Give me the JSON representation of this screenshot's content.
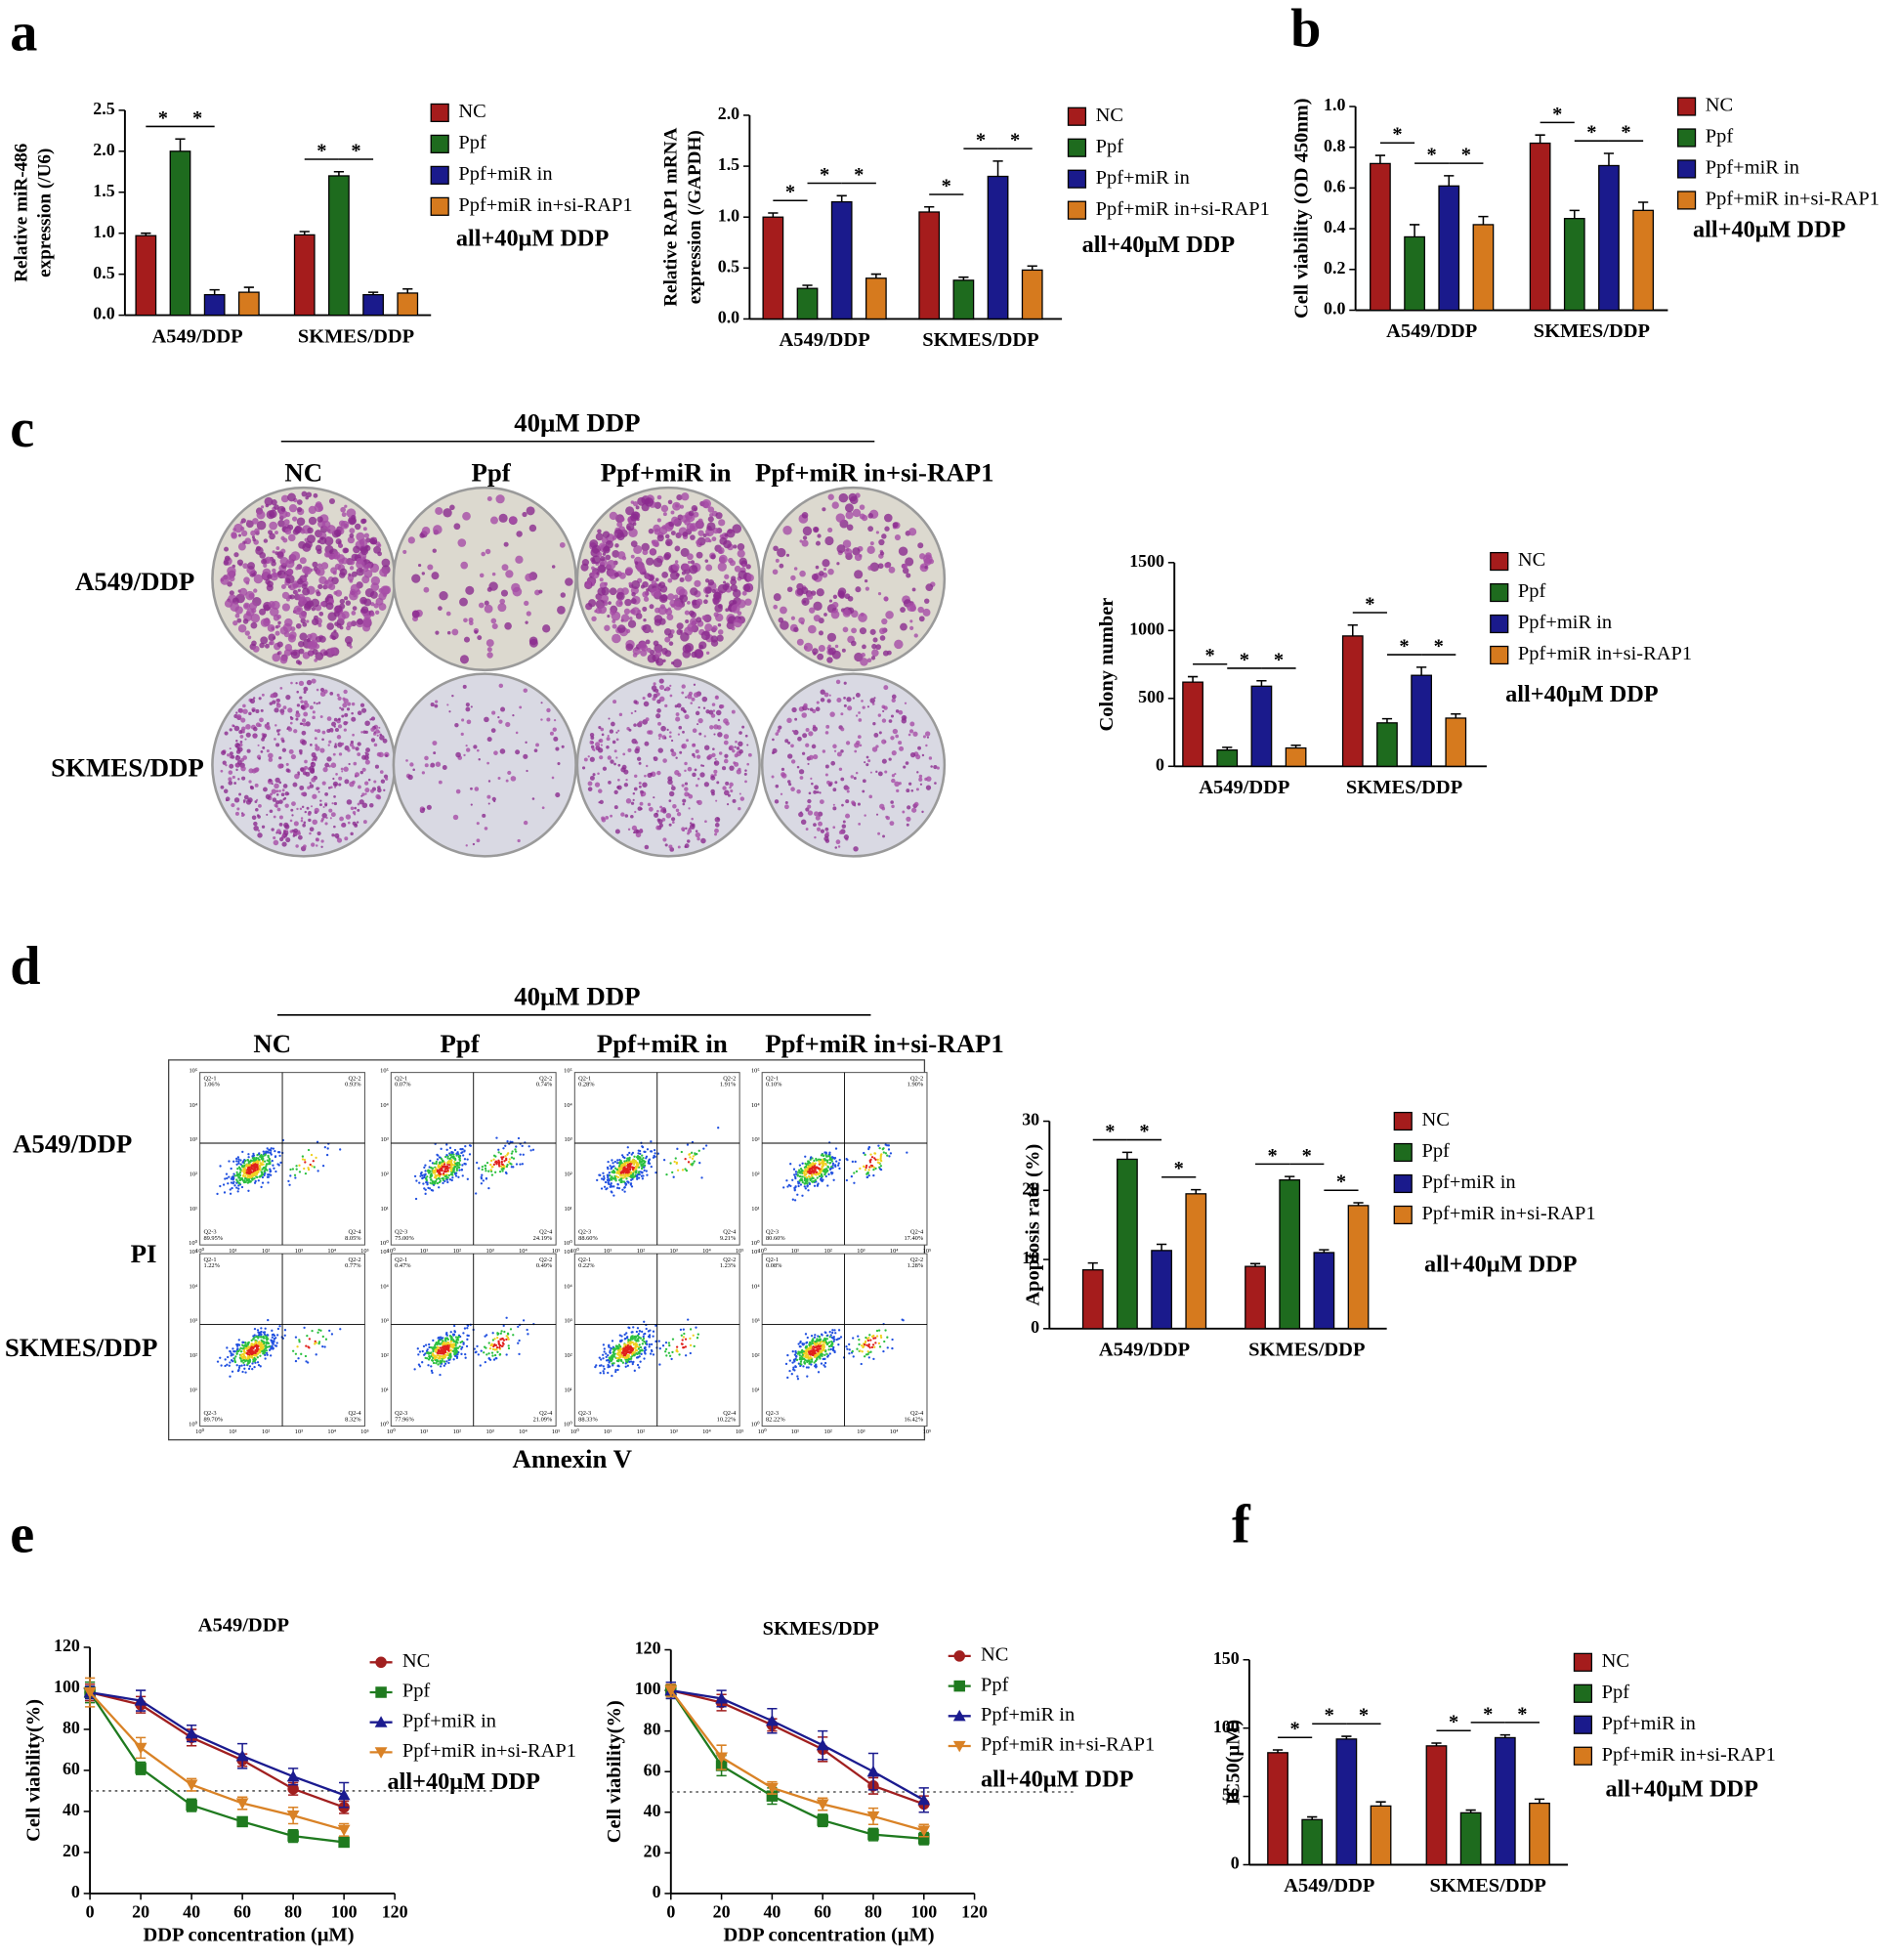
{
  "figure": {
    "panel_letters": [
      "a",
      "b",
      "c",
      "d",
      "e",
      "f"
    ],
    "panel_c": {
      "treatment": "40μM DDP",
      "columns": [
        "NC",
        "Ppf",
        "Ppf+miR in",
        "Ppf+miR in+si-RAP1"
      ],
      "rows": [
        "A549/DDP",
        "SKMES/DDP"
      ]
    },
    "panel_d": {
      "treatment": "40μM DDP",
      "columns": [
        "NC",
        "Ppf",
        "Ppf+miR in",
        "Ppf+miR in+si-RAP1"
      ],
      "rows": [
        "A549/DDP",
        "SKMES/DDP"
      ],
      "y_axis": "PI",
      "x_axis": "Annexin V",
      "quadrants": [
        "Q2-1",
        "Q2-2",
        "Q2-3",
        "Q2-4"
      ],
      "percentages": [
        [
          [
            "1.06%",
            "0.93%",
            "89.95%",
            "8.05%"
          ],
          [
            "0.07%",
            "0.74%",
            "75.00%",
            "24.19%"
          ],
          [
            "0.28%",
            "1.91%",
            "88.60%",
            "9.21%"
          ],
          [
            "0.10%",
            "1.90%",
            "80.60%",
            "17.40%"
          ]
        ],
        [
          [
            "1.22%",
            "0.77%",
            "89.70%",
            "8.32%"
          ],
          [
            "0.47%",
            "0.49%",
            "77.96%",
            "21.09%"
          ],
          [
            "0.22%",
            "1.23%",
            "88.33%",
            "10.22%"
          ],
          [
            "0.08%",
            "1.28%",
            "82.22%",
            "16.42%"
          ]
        ]
      ],
      "axis_ticks": [
        "10⁰",
        "10¹",
        "10²",
        "10³",
        "10⁴",
        "10⁵"
      ]
    }
  },
  "chart_data": [
    {
      "type": "bar",
      "ylabel": [
        "Relative miR-486",
        "expression (/U6)"
      ],
      "categories": [
        "A549/DDP",
        "SKMES/DDP"
      ],
      "series": [
        {
          "name": "NC",
          "color": "#a51c1c",
          "values": [
            0.97,
            0.98
          ],
          "errors": [
            0.03,
            0.04
          ]
        },
        {
          "name": "Ppf",
          "color": "#1e6b1e",
          "values": [
            2.0,
            1.7
          ],
          "errors": [
            0.15,
            0.05
          ]
        },
        {
          "name": "Ppf+miR in",
          "color": "#1a1a8c",
          "values": [
            0.25,
            0.25
          ],
          "errors": [
            0.06,
            0.03
          ]
        },
        {
          "name": "Ppf+miR in+si-RAP1",
          "color": "#d67a1e",
          "values": [
            0.28,
            0.27
          ],
          "errors": [
            0.06,
            0.05
          ]
        }
      ],
      "ylim": [
        0,
        2.5
      ],
      "yticks": [
        {
          "value": 0,
          "label": "0.0"
        },
        0.5,
        {
          "value": 1,
          "label": "1.0"
        },
        1.5,
        {
          "value": 2,
          "label": "2.0"
        },
        2.5
      ],
      "note": "all+40μM DDP",
      "annotations": [
        {
          "text": "*",
          "category": 0,
          "series": [
            0,
            1
          ]
        },
        {
          "text": "*",
          "category": 0,
          "series": [
            1,
            2
          ]
        },
        {
          "text": "*",
          "category": 1,
          "series": [
            0,
            1
          ]
        },
        {
          "text": "*",
          "category": 1,
          "series": [
            1,
            2
          ]
        }
      ]
    },
    {
      "type": "bar",
      "ylabel": [
        "Relative RAP1 mRNA",
        "expression (/GAPDH)"
      ],
      "categories": [
        "A549/DDP",
        "SKMES/DDP"
      ],
      "series": [
        {
          "name": "NC",
          "color": "#a51c1c",
          "values": [
            1.0,
            1.05
          ],
          "errors": [
            0.04,
            0.05
          ]
        },
        {
          "name": "Ppf",
          "color": "#1e6b1e",
          "values": [
            0.3,
            0.38
          ],
          "errors": [
            0.03,
            0.03
          ]
        },
        {
          "name": "Ppf+miR in",
          "color": "#1a1a8c",
          "values": [
            1.15,
            1.4
          ],
          "errors": [
            0.06,
            0.15
          ]
        },
        {
          "name": "Ppf+miR in+si-RAP1",
          "color": "#d67a1e",
          "values": [
            0.4,
            0.48
          ],
          "errors": [
            0.04,
            0.04
          ]
        }
      ],
      "ylim": [
        0,
        2
      ],
      "yticks": [
        {
          "value": 0,
          "label": "0.0"
        },
        0.5,
        {
          "value": 1,
          "label": "1.0"
        },
        1.5,
        {
          "value": 2,
          "label": "2.0"
        }
      ],
      "note": "all+40μM DDP",
      "annotations": [
        {
          "text": "*",
          "category": 0,
          "series": [
            0,
            1
          ]
        },
        {
          "text": "*",
          "category": 0,
          "series": [
            1,
            2
          ]
        },
        {
          "text": "*",
          "category": 0,
          "series": [
            2,
            3
          ]
        },
        {
          "text": "*",
          "category": 1,
          "series": [
            0,
            1
          ]
        },
        {
          "text": "*",
          "category": 1,
          "series": [
            1,
            2
          ]
        },
        {
          "text": "*",
          "category": 1,
          "series": [
            2,
            3
          ]
        }
      ]
    },
    {
      "type": "bar",
      "ylabel": "Cell viability (OD 450nm)",
      "categories": [
        "A549/DDP",
        "SKMES/DDP"
      ],
      "series": [
        {
          "name": "NC",
          "color": "#a51c1c",
          "values": [
            0.72,
            0.82
          ],
          "errors": [
            0.04,
            0.04
          ]
        },
        {
          "name": "Ppf",
          "color": "#1e6b1e",
          "values": [
            0.36,
            0.45
          ],
          "errors": [
            0.06,
            0.04
          ]
        },
        {
          "name": "Ppf+miR in",
          "color": "#1a1a8c",
          "values": [
            0.61,
            0.71
          ],
          "errors": [
            0.05,
            0.06
          ]
        },
        {
          "name": "Ppf+miR in+si-RAP1",
          "color": "#d67a1e",
          "values": [
            0.42,
            0.49
          ],
          "errors": [
            0.04,
            0.04
          ]
        }
      ],
      "ylim": [
        0,
        1
      ],
      "yticks": [
        {
          "value": 0,
          "label": "0.0"
        },
        0.2,
        0.4,
        0.6,
        0.8,
        {
          "value": 1,
          "label": "1.0"
        }
      ],
      "note": "all+40μM DDP",
      "annotations": [
        {
          "text": "*",
          "category": 0,
          "series": [
            0,
            1
          ]
        },
        {
          "text": "*",
          "category": 0,
          "series": [
            1,
            2
          ]
        },
        {
          "text": "*",
          "category": 0,
          "series": [
            2,
            3
          ]
        },
        {
          "text": "*",
          "category": 1,
          "series": [
            0,
            1
          ]
        },
        {
          "text": "*",
          "category": 1,
          "series": [
            1,
            2
          ]
        },
        {
          "text": "*",
          "category": 1,
          "series": [
            2,
            3
          ]
        }
      ]
    },
    {
      "type": "bar",
      "ylabel": "Colony number",
      "categories": [
        "A549/DDP",
        "SKMES/DDP"
      ],
      "series": [
        {
          "name": "NC",
          "color": "#a51c1c",
          "values": [
            620,
            960
          ],
          "errors": [
            40,
            80
          ]
        },
        {
          "name": "Ppf",
          "color": "#1e6b1e",
          "values": [
            120,
            320
          ],
          "errors": [
            20,
            30
          ]
        },
        {
          "name": "Ppf+miR in",
          "color": "#1a1a8c",
          "values": [
            590,
            670
          ],
          "errors": [
            40,
            60
          ]
        },
        {
          "name": "Ppf+miR in+si-RAP1",
          "color": "#d67a1e",
          "values": [
            135,
            355
          ],
          "errors": [
            20,
            30
          ]
        }
      ],
      "ylim": [
        0,
        1500
      ],
      "yticks": [
        0,
        500,
        1000,
        1500
      ],
      "note": "all+40μM DDP",
      "annotations": [
        {
          "text": "*",
          "category": 0,
          "series": [
            0,
            1
          ]
        },
        {
          "text": "*",
          "category": 0,
          "series": [
            1,
            2
          ]
        },
        {
          "text": "*",
          "category": 0,
          "series": [
            2,
            3
          ]
        },
        {
          "text": "*",
          "category": 1,
          "series": [
            0,
            1
          ]
        },
        {
          "text": "*",
          "category": 1,
          "series": [
            1,
            2
          ]
        },
        {
          "text": "*",
          "category": 1,
          "series": [
            2,
            3
          ]
        }
      ]
    },
    {
      "type": "bar",
      "ylabel": "Apoptosis rate (%)",
      "categories": [
        "A549/DDP",
        "SKMES/DDP"
      ],
      "series": [
        {
          "name": "NC",
          "color": "#a51c1c",
          "values": [
            8.5,
            9
          ],
          "errors": [
            1,
            0.4
          ]
        },
        {
          "name": "Ppf",
          "color": "#1e6b1e",
          "values": [
            24.5,
            21.5
          ],
          "errors": [
            1,
            0.5
          ]
        },
        {
          "name": "Ppf+miR in",
          "color": "#1a1a8c",
          "values": [
            11.3,
            11
          ],
          "errors": [
            0.9,
            0.4
          ]
        },
        {
          "name": "Ppf+miR in+si-RAP1",
          "color": "#d67a1e",
          "values": [
            19.5,
            17.8
          ],
          "errors": [
            0.6,
            0.4
          ]
        }
      ],
      "ylim": [
        0,
        30
      ],
      "yticks": [
        0,
        10,
        20,
        30
      ],
      "note": "all+40μM DDP",
      "annotations": [
        {
          "text": "*",
          "category": 0,
          "series": [
            0,
            1
          ]
        },
        {
          "text": "*",
          "category": 0,
          "series": [
            1,
            2
          ]
        },
        {
          "text": "*",
          "category": 0,
          "series": [
            2,
            3
          ]
        },
        {
          "text": "*",
          "category": 1,
          "series": [
            0,
            1
          ]
        },
        {
          "text": "*",
          "category": 1,
          "series": [
            1,
            2
          ]
        },
        {
          "text": "*",
          "category": 1,
          "series": [
            2,
            3
          ]
        }
      ]
    },
    {
      "type": "line",
      "title": "A549/DDP",
      "xlabel": "DDP concentration (μM)",
      "ylabel": "Cell viability(%)",
      "x": [
        0,
        20,
        40,
        60,
        80,
        100
      ],
      "xlim": [
        0,
        120
      ],
      "xticks": [
        0,
        20,
        40,
        60,
        80,
        100,
        120
      ],
      "ylim": [
        0,
        120
      ],
      "yticks": [
        0,
        20,
        40,
        60,
        80,
        100,
        120
      ],
      "reference_line": 50,
      "note": "all+40μM DDP",
      "series": [
        {
          "name": "NC",
          "color": "#a11f1f",
          "marker": "circle",
          "values": [
            98,
            92,
            76,
            65,
            51,
            42
          ],
          "errors": [
            4,
            4,
            4,
            3,
            3,
            3
          ]
        },
        {
          "name": "Ppf",
          "color": "#1f7a1f",
          "marker": "square",
          "values": [
            98,
            61,
            43,
            35,
            28,
            25
          ],
          "errors": [
            5,
            3,
            3,
            2,
            3,
            2
          ]
        },
        {
          "name": "Ppf+miR in",
          "color": "#1b1b8f",
          "marker": "triangle-up",
          "values": [
            98,
            94,
            78,
            67,
            57,
            48
          ],
          "errors": [
            3,
            5,
            4,
            6,
            4,
            6
          ]
        },
        {
          "name": "Ppf+miR in+si-RAP1",
          "color": "#d98226",
          "marker": "triangle-down",
          "values": [
            98,
            71,
            53,
            44,
            38,
            31
          ],
          "errors": [
            7,
            5,
            3,
            3,
            4,
            3
          ]
        }
      ]
    },
    {
      "type": "line",
      "title": "SKMES/DDP",
      "xlabel": "DDP concentration (μM)",
      "ylabel": "Cell viability(%)",
      "x": [
        0,
        20,
        40,
        60,
        80,
        100
      ],
      "xlim": [
        0,
        120
      ],
      "xticks": [
        0,
        20,
        40,
        60,
        80,
        100,
        120
      ],
      "ylim": [
        0,
        120
      ],
      "yticks": [
        0,
        20,
        40,
        60,
        80,
        100,
        120
      ],
      "reference_line": 50,
      "note": "all+40μM DDP",
      "series": [
        {
          "name": "NC",
          "color": "#a11f1f",
          "marker": "circle",
          "values": [
            100,
            94,
            83,
            71,
            53,
            44
          ],
          "errors": [
            3,
            4,
            3,
            6,
            4,
            4
          ]
        },
        {
          "name": "Ppf",
          "color": "#1f7a1f",
          "marker": "square",
          "values": [
            100,
            63,
            48,
            36,
            29,
            27
          ],
          "errors": [
            4,
            5,
            4,
            3,
            3,
            3
          ]
        },
        {
          "name": "Ppf+miR in",
          "color": "#1b1b8f",
          "marker": "triangle-up",
          "values": [
            100,
            96,
            85,
            73,
            60,
            46
          ],
          "errors": [
            4,
            4,
            6,
            7,
            9,
            6
          ]
        },
        {
          "name": "Ppf+miR in+si-RAP1",
          "color": "#d98226",
          "marker": "triangle-down",
          "values": [
            100,
            67,
            52,
            44,
            38,
            31
          ],
          "errors": [
            3,
            6,
            3,
            3,
            4,
            3
          ]
        }
      ]
    },
    {
      "type": "bar",
      "ylabel": "IC50(μM)",
      "categories": [
        "A549/DDP",
        "SKMES/DDP"
      ],
      "series": [
        {
          "name": "NC",
          "color": "#a51c1c",
          "values": [
            82,
            87
          ],
          "errors": [
            2,
            2
          ]
        },
        {
          "name": "Ppf",
          "color": "#1e6b1e",
          "values": [
            33,
            38
          ],
          "errors": [
            2,
            2
          ]
        },
        {
          "name": "Ppf+miR in",
          "color": "#1a1a8c",
          "values": [
            92,
            93
          ],
          "errors": [
            2,
            2
          ]
        },
        {
          "name": "Ppf+miR in+si-RAP1",
          "color": "#d67a1e",
          "values": [
            43,
            45
          ],
          "errors": [
            3,
            3
          ]
        }
      ],
      "ylim": [
        0,
        150
      ],
      "yticks": [
        0,
        50,
        100,
        150
      ],
      "note": "all+40μM DDP",
      "annotations": [
        {
          "text": "*",
          "category": 0,
          "series": [
            0,
            1
          ]
        },
        {
          "text": "*",
          "category": 0,
          "series": [
            1,
            2
          ]
        },
        {
          "text": "*",
          "category": 0,
          "series": [
            2,
            3
          ]
        },
        {
          "text": "*",
          "category": 1,
          "series": [
            0,
            1
          ]
        },
        {
          "text": "*",
          "category": 1,
          "series": [
            1,
            2
          ]
        },
        {
          "text": "*",
          "category": 1,
          "series": [
            2,
            3
          ]
        }
      ]
    }
  ]
}
